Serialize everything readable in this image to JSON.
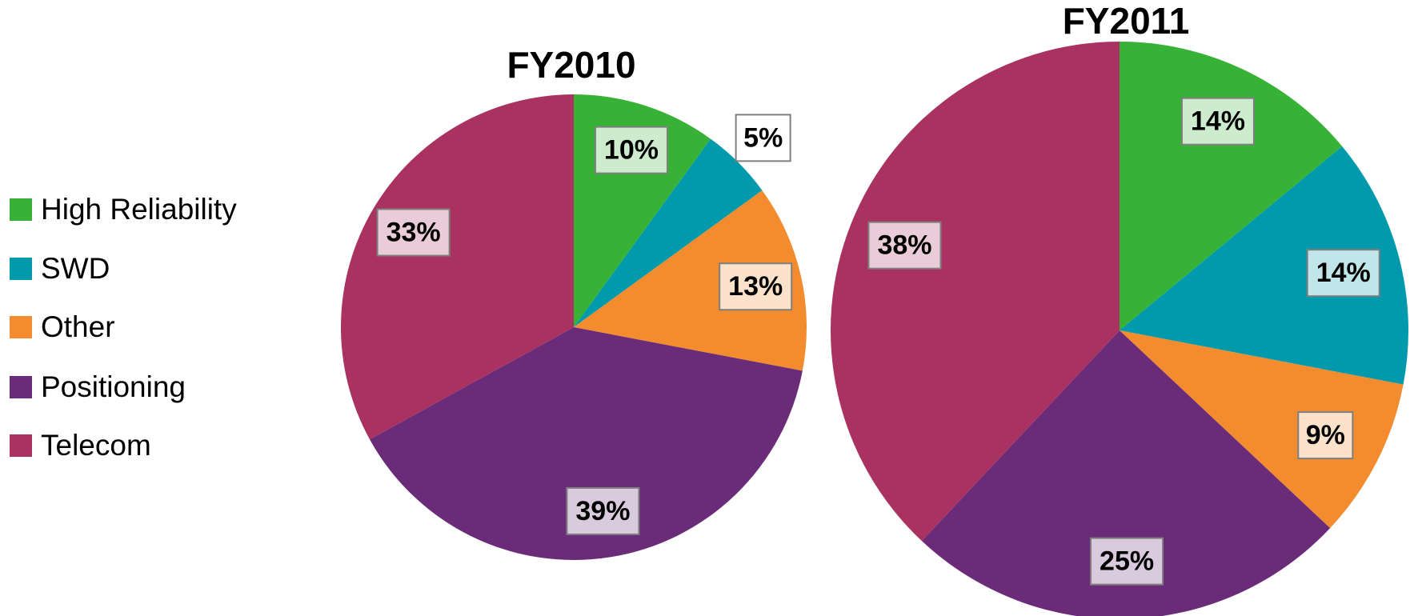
{
  "legend": {
    "labels": [
      "High Reliability",
      "SWD",
      "Other",
      "Positioning",
      "Telecom"
    ],
    "colors": [
      "#37b236",
      "#019aac",
      "#f28c2e",
      "#6a2b78",
      "#aa3261"
    ]
  },
  "chart_data": [
    {
      "type": "pie",
      "title": "FY2010",
      "values": [
        10,
        5,
        13,
        39,
        33
      ],
      "value_labels": [
        "10%",
        "5%",
        "13%",
        "39%",
        "33%"
      ]
    },
    {
      "type": "pie",
      "title": "FY2011",
      "values": [
        14,
        14,
        9,
        25,
        38
      ],
      "value_labels": [
        "14%",
        "14%",
        "9%",
        "25%",
        "38%"
      ]
    }
  ]
}
